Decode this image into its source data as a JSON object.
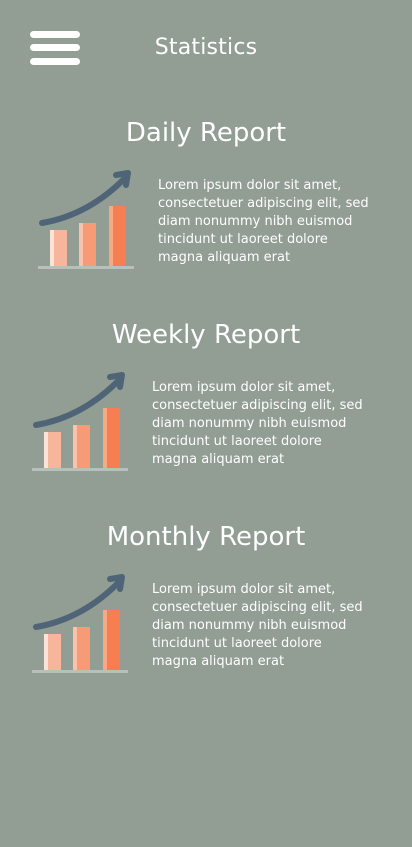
{
  "header": {
    "title": "Statistics",
    "menu_icon": "hamburger-menu-icon"
  },
  "reports": [
    {
      "title": "Daily Report",
      "icon": "growth-chart-icon",
      "text": "Lorem ipsum dolor sit amet, consectetuer adipiscing elit, sed diam nonummy nibh euismod tincidunt ut laoreet dolore magna aliquam erat"
    },
    {
      "title": "Weekly Report",
      "icon": "growth-chart-icon",
      "text": "Lorem ipsum dolor sit amet, consectetuer adipiscing elit, sed diam nonummy nibh euismod tincidunt ut laoreet dolore magna aliquam erat"
    },
    {
      "title": "Monthly Report",
      "icon": "growth-chart-icon",
      "text": "Lorem ipsum dolor sit amet, consectetuer adipiscing elit, sed diam nonummy nibh euismod tincidunt ut laoreet dolore magna aliquam erat"
    }
  ],
  "colors": {
    "background": "#929d94",
    "text": "#ffffff",
    "arrow": "#4f6577",
    "bar_light": "#f7b59b",
    "bar_mid": "#f79a76",
    "bar_dark": "#f57f52",
    "baseline": "#b8c0bb"
  }
}
